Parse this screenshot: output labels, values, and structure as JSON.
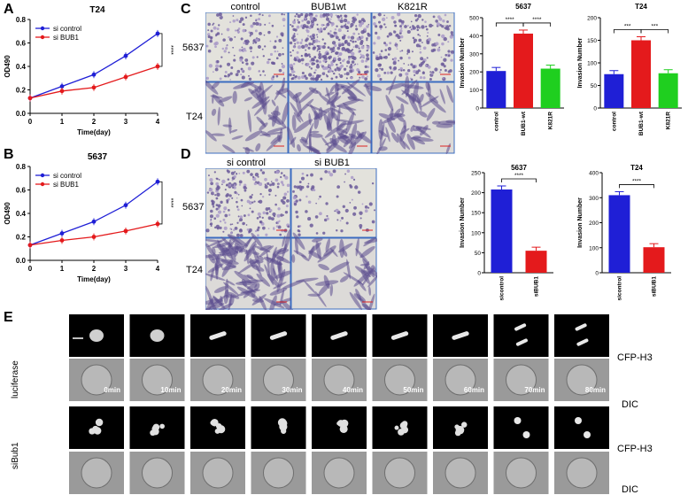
{
  "panels": {
    "A": "A",
    "B": "B",
    "C": "C",
    "D": "D",
    "E": "E"
  },
  "colors": {
    "blue": "#1f1fd6",
    "red": "#e41a1c",
    "green": "#1fcf1f",
    "plum": "#9a8fbf"
  },
  "panelC": {
    "col_headers": [
      "control",
      "BUB1wt",
      "K821R"
    ],
    "row_labels": [
      "5637",
      "T24"
    ]
  },
  "panelD": {
    "col_headers": [
      "si control",
      "si BUB1"
    ],
    "row_labels": [
      "5637",
      "T24"
    ]
  },
  "panelE": {
    "luciferase": "luciferase",
    "sibub1": "siBub1",
    "cfp": "CFP-H3",
    "dic": "DIC",
    "times": [
      "0min",
      "10min",
      "20min",
      "30min",
      "40min",
      "50min",
      "60min",
      "70min",
      "80min"
    ]
  },
  "chart_data": [
    {
      "id": "A",
      "type": "line",
      "title": "T24",
      "xlabel": "Time(day)",
      "ylabel": "OD490",
      "x": [
        0,
        1,
        2,
        3,
        4
      ],
      "xlim": [
        0,
        4
      ],
      "ylim": [
        0.0,
        0.8
      ],
      "yticks": [
        "0.0",
        "0.2",
        "0.4",
        "0.6",
        "0.8"
      ],
      "xticks": [
        "0",
        "1",
        "2",
        "3",
        "4"
      ],
      "series": [
        {
          "name": "si control",
          "color": "#1f1fd6",
          "values": [
            0.13,
            0.23,
            0.33,
            0.49,
            0.68
          ]
        },
        {
          "name": "si BUB1",
          "color": "#e41a1c",
          "values": [
            0.13,
            0.19,
            0.22,
            0.31,
            0.4
          ]
        }
      ],
      "annotation": "****",
      "legend": "top-left"
    },
    {
      "id": "B",
      "type": "line",
      "title": "5637",
      "xlabel": "Time(day)",
      "ylabel": "OD490",
      "x": [
        0,
        1,
        2,
        3,
        4
      ],
      "xlim": [
        0,
        4
      ],
      "ylim": [
        0.0,
        0.8
      ],
      "yticks": [
        "0.0",
        "0.2",
        "0.4",
        "0.6",
        "0.8"
      ],
      "xticks": [
        "0",
        "1",
        "2",
        "3",
        "4"
      ],
      "series": [
        {
          "name": "si control",
          "color": "#1f1fd6",
          "values": [
            0.13,
            0.23,
            0.33,
            0.47,
            0.67
          ]
        },
        {
          "name": "si BUB1",
          "color": "#e41a1c",
          "values": [
            0.13,
            0.17,
            0.2,
            0.25,
            0.31
          ]
        }
      ],
      "annotation": "****",
      "legend": "top-left"
    },
    {
      "id": "C1",
      "type": "bar",
      "title": "5637",
      "ylabel": "Invasion Number",
      "categories": [
        "control",
        "BUB1-wt",
        "K821R"
      ],
      "values": [
        205,
        412,
        218
      ],
      "colors": [
        "#1f1fd6",
        "#e41a1c",
        "#1fcf1f"
      ],
      "ylim": [
        0,
        500
      ],
      "yticks": [
        "0",
        "100",
        "200",
        "300",
        "400",
        "500"
      ],
      "annotations": [
        "****",
        "****"
      ]
    },
    {
      "id": "C2",
      "type": "bar",
      "title": "T24",
      "ylabel": "Invasion Number",
      "categories": [
        "control",
        "BUB1-wt",
        "K821R"
      ],
      "values": [
        75,
        150,
        77
      ],
      "colors": [
        "#1f1fd6",
        "#e41a1c",
        "#1fcf1f"
      ],
      "ylim": [
        0,
        200
      ],
      "yticks": [
        "0",
        "50",
        "100",
        "150",
        "200"
      ],
      "annotations": [
        "***",
        "***"
      ]
    },
    {
      "id": "D1",
      "type": "bar",
      "title": "5637",
      "ylabel": "Invasion Number",
      "categories": [
        "sicontrol",
        "siBUB1"
      ],
      "values": [
        208,
        55
      ],
      "colors": [
        "#1f1fd6",
        "#e41a1c"
      ],
      "ylim": [
        0,
        250
      ],
      "yticks": [
        "0",
        "50",
        "100",
        "150",
        "200",
        "250"
      ],
      "annotations": [
        "****"
      ]
    },
    {
      "id": "D2",
      "type": "bar",
      "title": "T24",
      "ylabel": "Invasion Number",
      "categories": [
        "sicontrol",
        "siBUB1"
      ],
      "values": [
        310,
        102
      ],
      "colors": [
        "#1f1fd6",
        "#e41a1c"
      ],
      "ylim": [
        0,
        400
      ],
      "yticks": [
        "0",
        "100",
        "200",
        "300",
        "400"
      ],
      "annotations": [
        "****"
      ]
    }
  ]
}
